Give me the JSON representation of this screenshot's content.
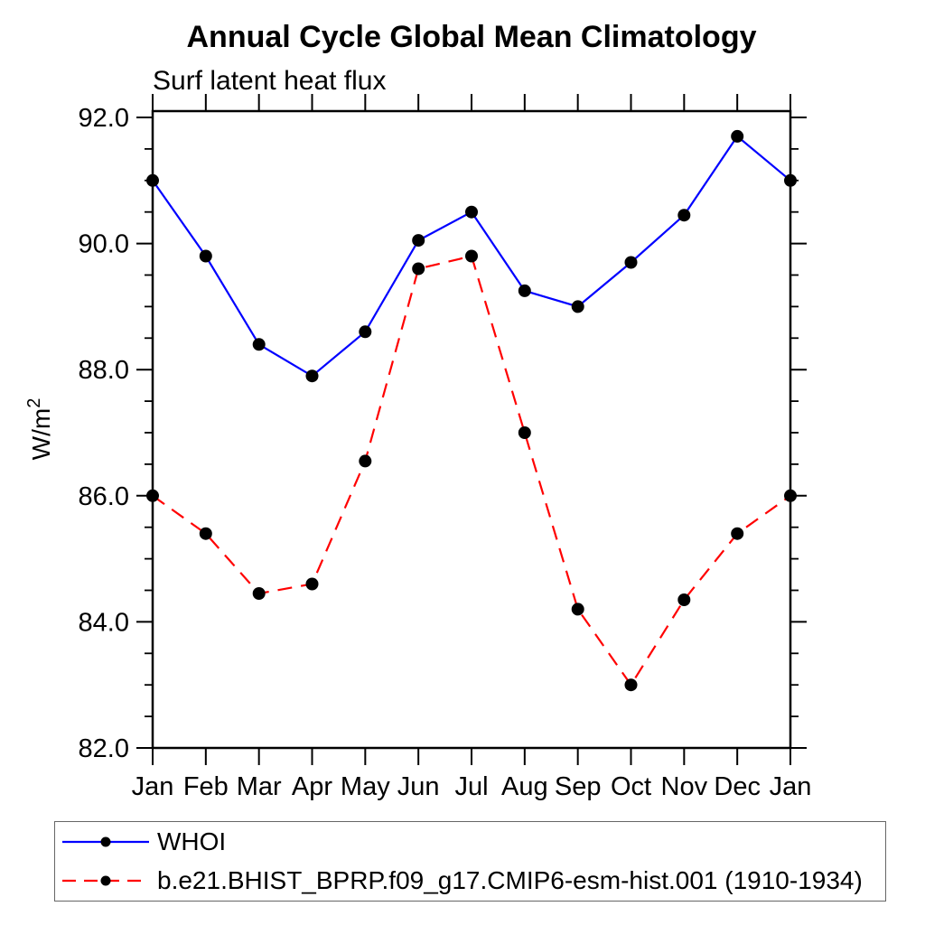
{
  "title": "Annual Cycle Global Mean Climatology",
  "subtitle": "Surf latent heat flux",
  "ylabel": {
    "base": "W/m",
    "exponent": "2"
  },
  "colors": {
    "series1": "#0000ff",
    "series2": "#ff0000",
    "marker": "#000000",
    "axis": "#000000",
    "background": "#ffffff",
    "legend_border": "#666666"
  },
  "legend": {
    "position": "bottom-left",
    "items": [
      {
        "label": "WHOI",
        "line_style": "solid",
        "line_color": "#0000ff",
        "marker": "filled-circle"
      },
      {
        "label": "b.e21.BHIST_BPRP.f09_g17.CMIP6-esm-hist.001 (1910-1934)",
        "line_style": "dashed",
        "line_color": "#ff0000",
        "marker": "filled-circle"
      }
    ]
  },
  "chart_data": {
    "type": "line",
    "title": "Annual Cycle Global Mean Climatology",
    "subtitle": "Surf latent heat flux",
    "ylabel": "W/m^2",
    "categories": [
      "Jan",
      "Feb",
      "Mar",
      "Apr",
      "May",
      "Jun",
      "Jul",
      "Aug",
      "Sep",
      "Oct",
      "Nov",
      "Dec",
      "Jan"
    ],
    "series": [
      {
        "name": "WHOI",
        "color": "#0000ff",
        "style": "solid",
        "marker": "filled-circle",
        "values": [
          91.0,
          89.8,
          88.4,
          87.9,
          88.6,
          90.05,
          90.5,
          89.25,
          89.0,
          89.7,
          90.45,
          91.7,
          91.0
        ]
      },
      {
        "name": "b.e21.BHIST_BPRP.f09_g17.CMIP6-esm-hist.001 (1910-1934)",
        "color": "#ff0000",
        "style": "dashed",
        "marker": "filled-circle",
        "values": [
          86.0,
          85.4,
          84.45,
          84.6,
          86.55,
          89.6,
          89.8,
          87.0,
          84.2,
          83.0,
          84.35,
          85.4,
          86.0
        ]
      }
    ],
    "ylim": [
      82.0,
      92.1
    ],
    "yticks_major": [
      82,
      84,
      86,
      88,
      90,
      92
    ],
    "ytick_labels": [
      "82.0",
      "84.0",
      "86.0",
      "88.0",
      "90.0",
      "92.0"
    ],
    "minor_tick_interval": 0.5,
    "grid": false,
    "legend_position": "bottom-left"
  }
}
